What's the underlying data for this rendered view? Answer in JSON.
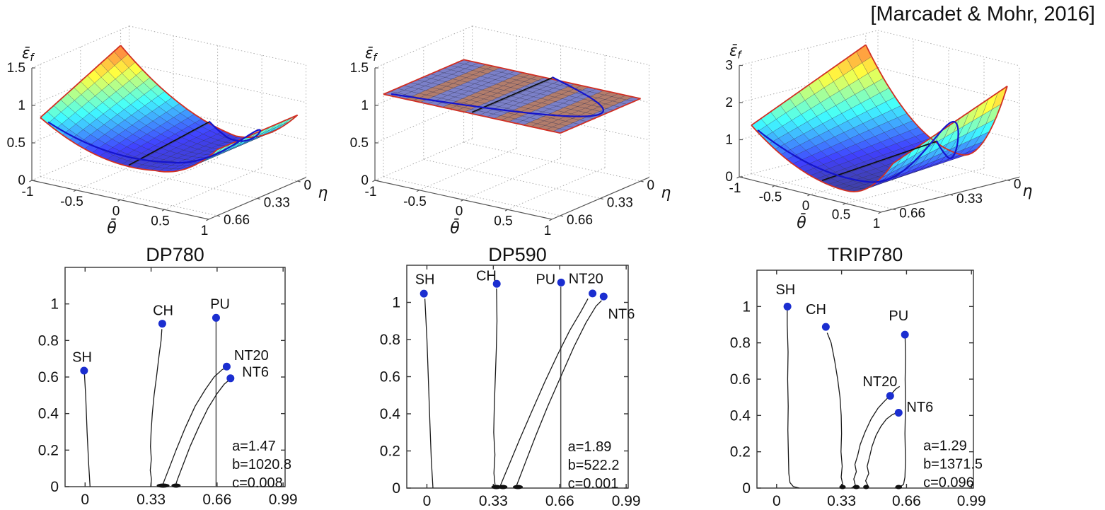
{
  "citation": "[Marcadet & Mohr, 2016]",
  "colors": {
    "marker": "#1b2ed0",
    "path": "#1a1a1a",
    "pu_line": "#4d4d4d",
    "surface_edge": "#d12f23",
    "plane_stress_curve": "#1414cc",
    "plane_strain_line": "#111111",
    "grid": "#ababab",
    "axis": "#555555",
    "text": "#111111"
  },
  "chart_data": [
    {
      "type": "surface",
      "material": "DP780",
      "xlabel": "θ̄",
      "ylabel": "η",
      "zlabel": {
        "base": "ε̄",
        "sub": "f"
      },
      "x_ticks": [
        "-1",
        "-0.5",
        "0",
        "0.5",
        "1"
      ],
      "x_tick_values": [
        -1,
        -0.5,
        0,
        0.5,
        1
      ],
      "y_ticks": [
        "0.66",
        "0.33",
        "0"
      ],
      "y_tick_values": [
        0.66,
        0.33,
        0
      ],
      "z_ticks": [
        "0",
        "0.5",
        "1",
        "1.5"
      ],
      "z_tick_values": [
        0,
        0.5,
        1,
        1.5
      ],
      "x_range": [
        -1,
        1
      ],
      "y_range": [
        0,
        0.66
      ],
      "z_range": [
        0,
        1.5
      ],
      "shape": {
        "kind": "valley",
        "z_min": 0.42,
        "t_min": 0.3,
        "k_left": 0.62,
        "k_right": 0.46,
        "eta_gain": 0,
        "back_tilt": 0.76,
        "color_lo": 0.32,
        "color_hi": 1.5
      },
      "overlays": {
        "plane_stress_curve": true,
        "plane_strain_line": true,
        "red_edges": true
      }
    },
    {
      "type": "surface",
      "material": "DP590",
      "xlabel": "θ̄",
      "ylabel": "η",
      "zlabel": {
        "base": "ε̄",
        "sub": "f"
      },
      "x_ticks": [
        "-1",
        "-0.5",
        "0",
        "0.5",
        "1"
      ],
      "x_tick_values": [
        -1,
        -0.5,
        0,
        0.5,
        1
      ],
      "y_ticks": [
        "0.66",
        "0.33",
        "0"
      ],
      "y_tick_values": [
        0.66,
        0.33,
        0
      ],
      "z_ticks": [
        "0",
        "0.5",
        "1",
        "1.5"
      ],
      "z_tick_values": [
        0,
        0.5,
        1,
        1.5
      ],
      "x_range": [
        -1,
        1
      ],
      "y_range": [
        0,
        0.66
      ],
      "z_range": [
        0,
        1.5
      ],
      "shape": {
        "kind": "flat",
        "z_level": 1.1,
        "stripe_colors": [
          "#7b80c8",
          "#b27d6c"
        ],
        "stripe_pattern": [
          0,
          0,
          0,
          1,
          1,
          0,
          0,
          0,
          1,
          1,
          1,
          0,
          0,
          0,
          0,
          1,
          1,
          0,
          0,
          1,
          1,
          1,
          1,
          0
        ]
      },
      "overlays": {
        "plane_stress_curve": true,
        "plane_strain_line": true,
        "red_edges": true
      }
    },
    {
      "type": "surface",
      "material": "TRIP780",
      "xlabel": "θ̄",
      "ylabel": "η",
      "zlabel": {
        "base": "ε̄",
        "sub": "f"
      },
      "x_ticks": [
        "-1",
        "-0.5",
        "0",
        "0.5",
        "1"
      ],
      "x_tick_values": [
        -1,
        -0.5,
        0,
        0.5,
        1
      ],
      "y_ticks": [
        "0.66",
        "0.33",
        "0"
      ],
      "y_tick_values": [
        0.66,
        0.33,
        0
      ],
      "z_ticks": [
        "0",
        "1",
        "2",
        "3"
      ],
      "z_tick_values": [
        0,
        1,
        2,
        3
      ],
      "x_range": [
        -1,
        1
      ],
      "y_range": [
        0,
        0.66
      ],
      "z_range": [
        0,
        3
      ],
      "shape": {
        "kind": "valley",
        "z_min": 0.28,
        "t_min": 0.35,
        "k_left": 1.72,
        "k_right": 1.6,
        "eta_gain": 1.05,
        "back_tilt": 0,
        "color_lo": 0.15,
        "color_hi": 3.3
      },
      "overlays": {
        "plane_stress_curve": true,
        "plane_strain_line": true,
        "red_edges": true
      }
    },
    {
      "type": "scatter",
      "title": "DP780",
      "xlabel": "",
      "ylabel": "",
      "x_ticks": [
        "0",
        "0.33",
        "0.66",
        "0.99"
      ],
      "x_tick_values": [
        0,
        0.33,
        0.66,
        0.99
      ],
      "y_ticks": [
        "0",
        "0.2",
        "0.4",
        "0.6",
        "0.8",
        "1"
      ],
      "y_tick_values": [
        0,
        0.2,
        0.4,
        0.6,
        0.8,
        1
      ],
      "x_range": [
        -0.1,
        1.0
      ],
      "y_range": [
        0,
        1.2
      ],
      "points": [
        {
          "label": "SH",
          "x": -0.005,
          "y": 0.635,
          "lx": -0.015,
          "ly": 0.71,
          "anchor": "middle"
        },
        {
          "label": "CH",
          "x": 0.386,
          "y": 0.892,
          "lx": 0.39,
          "ly": 0.965,
          "anchor": "middle"
        },
        {
          "label": "PU",
          "x": 0.655,
          "y": 0.924,
          "lx": 0.675,
          "ly": 1.0,
          "anchor": "middle"
        },
        {
          "label": "NT20",
          "x": 0.708,
          "y": 0.657,
          "lx": 0.745,
          "ly": 0.72,
          "anchor": "start"
        },
        {
          "label": "NT6",
          "x": 0.727,
          "y": 0.593,
          "lx": 0.785,
          "ly": 0.63,
          "anchor": "start"
        }
      ],
      "paths": [
        {
          "label": "SH",
          "pts": [
            [
              0.025,
              0
            ],
            [
              0.018,
              0.12
            ],
            [
              0.01,
              0.3
            ],
            [
              0.003,
              0.5
            ],
            [
              -0.003,
              0.615
            ]
          ]
        },
        {
          "label": "CH",
          "pts": [
            [
              0.328,
              0
            ],
            [
              0.332,
              0.04
            ],
            [
              0.326,
              0.09
            ],
            [
              0.331,
              0.15
            ],
            [
              0.327,
              0.22
            ],
            [
              0.33,
              0.3
            ],
            [
              0.336,
              0.4
            ],
            [
              0.345,
              0.5
            ],
            [
              0.357,
              0.6
            ],
            [
              0.37,
              0.72
            ],
            [
              0.38,
              0.8
            ],
            [
              0.384,
              0.862
            ]
          ]
        },
        {
          "label": "NT20",
          "pts": [
            [
              0.385,
              0
            ],
            [
              0.395,
              0.03
            ],
            [
              0.42,
              0.1
            ],
            [
              0.455,
              0.2
            ],
            [
              0.5,
              0.32
            ],
            [
              0.55,
              0.44
            ],
            [
              0.6,
              0.53
            ],
            [
              0.645,
              0.6
            ],
            [
              0.685,
              0.64
            ],
            [
              0.7,
              0.648
            ]
          ]
        },
        {
          "label": "NT6",
          "pts": [
            [
              0.45,
              0
            ],
            [
              0.462,
              0.04
            ],
            [
              0.49,
              0.12
            ],
            [
              0.525,
              0.22
            ],
            [
              0.57,
              0.33
            ],
            [
              0.615,
              0.43
            ],
            [
              0.66,
              0.51
            ],
            [
              0.695,
              0.56
            ],
            [
              0.718,
              0.582
            ]
          ]
        }
      ],
      "pu_line": {
        "x": 0.655,
        "y_top": 0.905,
        "style": "straight"
      },
      "feet": [
        {
          "x": 0.39,
          "w": 0.05
        },
        {
          "x": 0.455,
          "w": 0.032
        }
      ],
      "params": {
        "lines": [
          "a=1.47",
          "b=1020.8",
          "c=0.008"
        ],
        "x": 0.735,
        "y_top": 0.225
      }
    },
    {
      "type": "scatter",
      "title": "DP590",
      "xlabel": "",
      "ylabel": "",
      "x_ticks": [
        "0",
        "0.33",
        "0.66",
        "0.99"
      ],
      "x_tick_values": [
        0,
        0.33,
        0.66,
        0.99
      ],
      "y_ticks": [
        "0",
        "0.2",
        "0.4",
        "0.6",
        "0.8",
        "1"
      ],
      "y_tick_values": [
        0,
        0.2,
        0.4,
        0.6,
        0.8,
        1
      ],
      "x_range": [
        -0.1,
        1.0
      ],
      "y_range": [
        0,
        1.2
      ],
      "points": [
        {
          "label": "SH",
          "x": -0.015,
          "y": 1.047,
          "lx": -0.01,
          "ly": 1.125,
          "anchor": "middle"
        },
        {
          "label": "CH",
          "x": 0.347,
          "y": 1.1,
          "lx": 0.295,
          "ly": 1.145,
          "anchor": "middle"
        },
        {
          "label": "PU",
          "x": 0.667,
          "y": 1.107,
          "lx": 0.59,
          "ly": 1.125,
          "anchor": "middle"
        },
        {
          "label": "NT20",
          "x": 0.823,
          "y": 1.048,
          "lx": 0.79,
          "ly": 1.13,
          "anchor": "middle"
        },
        {
          "label": "NT6",
          "x": 0.878,
          "y": 1.032,
          "lx": 0.9,
          "ly": 0.94,
          "anchor": "start"
        }
      ],
      "paths": [
        {
          "label": "SH",
          "pts": [
            [
              0.03,
              0
            ],
            [
              0.022,
              0.15
            ],
            [
              0.015,
              0.35
            ],
            [
              0.007,
              0.6
            ],
            [
              0.0,
              0.8
            ],
            [
              -0.01,
              1.02
            ]
          ]
        },
        {
          "label": "CH",
          "pts": [
            [
              0.34,
              0
            ],
            [
              0.333,
              0.08
            ],
            [
              0.338,
              0.18
            ],
            [
              0.332,
              0.3
            ],
            [
              0.335,
              0.45
            ],
            [
              0.34,
              0.6
            ],
            [
              0.345,
              0.75
            ],
            [
              0.348,
              0.9
            ],
            [
              0.347,
              1.0
            ],
            [
              0.346,
              1.075
            ]
          ]
        },
        {
          "label": "NT20",
          "pts": [
            [
              0.36,
              0
            ],
            [
              0.375,
              0.04
            ],
            [
              0.41,
              0.13
            ],
            [
              0.46,
              0.26
            ],
            [
              0.52,
              0.41
            ],
            [
              0.585,
              0.57
            ],
            [
              0.65,
              0.72
            ],
            [
              0.71,
              0.85
            ],
            [
              0.765,
              0.95
            ],
            [
              0.8,
              1.02
            ]
          ]
        },
        {
          "label": "NT6",
          "pts": [
            [
              0.44,
              0
            ],
            [
              0.455,
              0.04
            ],
            [
              0.49,
              0.14
            ],
            [
              0.54,
              0.28
            ],
            [
              0.6,
              0.44
            ],
            [
              0.665,
              0.6
            ],
            [
              0.73,
              0.76
            ],
            [
              0.79,
              0.89
            ],
            [
              0.84,
              0.98
            ],
            [
              0.868,
              1.01
            ]
          ]
        }
      ],
      "pu_line": {
        "x": 0.665,
        "y_top": 1.085,
        "style": "straight"
      },
      "feet": [
        {
          "x": 0.345,
          "w": 0.035
        },
        {
          "x": 0.378,
          "w": 0.03
        },
        {
          "x": 0.452,
          "w": 0.035
        }
      ],
      "params": {
        "lines": [
          "a=1.89",
          "b=522.2",
          "c=0.001"
        ],
        "x": 0.7,
        "y_top": 0.225
      }
    },
    {
      "type": "scatter",
      "title": "TRIP780",
      "xlabel": "",
      "ylabel": "",
      "x_ticks": [
        "0",
        "0.33",
        "0.66",
        "0.99"
      ],
      "x_tick_values": [
        0,
        0.33,
        0.66,
        0.99
      ],
      "y_ticks": [
        "0",
        "0.2",
        "0.4",
        "0.6",
        "0.8",
        "1"
      ],
      "y_tick_values": [
        0,
        0.2,
        0.4,
        0.6,
        0.8,
        1
      ],
      "x_range": [
        -0.1,
        1.0
      ],
      "y_range": [
        0,
        1.2
      ],
      "points": [
        {
          "label": "SH",
          "x": 0.055,
          "y": 1.0,
          "lx": 0.045,
          "ly": 1.095,
          "anchor": "middle"
        },
        {
          "label": "CH",
          "x": 0.25,
          "y": 0.888,
          "lx": 0.2,
          "ly": 0.985,
          "anchor": "middle"
        },
        {
          "label": "PU",
          "x": 0.652,
          "y": 0.845,
          "lx": 0.62,
          "ly": 0.95,
          "anchor": "middle"
        },
        {
          "label": "NT20",
          "x": 0.577,
          "y": 0.508,
          "lx": 0.525,
          "ly": 0.588,
          "anchor": "middle"
        },
        {
          "label": "NT6",
          "x": 0.62,
          "y": 0.415,
          "lx": 0.66,
          "ly": 0.448,
          "anchor": "start"
        }
      ],
      "paths": [
        {
          "label": "SH",
          "pts": [
            [
              0.115,
              0
            ],
            [
              0.085,
              0.008
            ],
            [
              0.068,
              0.03
            ],
            [
              0.062,
              0.08
            ],
            [
              0.06,
              0.18
            ],
            [
              0.057,
              0.32
            ],
            [
              0.059,
              0.45
            ],
            [
              0.056,
              0.6
            ],
            [
              0.058,
              0.75
            ],
            [
              0.054,
              0.9
            ],
            [
              0.054,
              0.985
            ]
          ]
        },
        {
          "label": "CH",
          "pts": [
            [
              0.33,
              0
            ],
            [
              0.336,
              0.02
            ],
            [
              0.328,
              0.06
            ],
            [
              0.333,
              0.12
            ],
            [
              0.327,
              0.2
            ],
            [
              0.33,
              0.3
            ],
            [
              0.328,
              0.4
            ],
            [
              0.322,
              0.5
            ],
            [
              0.31,
              0.6
            ],
            [
              0.295,
              0.7
            ],
            [
              0.277,
              0.8
            ],
            [
              0.257,
              0.855
            ]
          ]
        },
        {
          "label": "NT20",
          "pts": [
            [
              0.38,
              0
            ],
            [
              0.4,
              0.015
            ],
            [
              0.392,
              0.05
            ],
            [
              0.405,
              0.09
            ],
            [
              0.398,
              0.13
            ],
            [
              0.412,
              0.18
            ],
            [
              0.425,
              0.24
            ],
            [
              0.45,
              0.31
            ],
            [
              0.48,
              0.38
            ],
            [
              0.515,
              0.44
            ],
            [
              0.545,
              0.475
            ],
            [
              0.577,
              0.51
            ],
            [
              0.605,
              0.545
            ],
            [
              0.625,
              0.56
            ]
          ]
        },
        {
          "label": "NT6",
          "pts": [
            [
              0.445,
              0
            ],
            [
              0.465,
              0.01
            ],
            [
              0.452,
              0.04
            ],
            [
              0.468,
              0.08
            ],
            [
              0.46,
              0.12
            ],
            [
              0.472,
              0.17
            ],
            [
              0.485,
              0.23
            ],
            [
              0.505,
              0.29
            ],
            [
              0.53,
              0.34
            ],
            [
              0.558,
              0.38
            ],
            [
              0.588,
              0.405
            ],
            [
              0.612,
              0.415
            ]
          ]
        },
        {
          "label": "PU",
          "pts": [
            [
              0.6,
              0
            ],
            [
              0.625,
              0.006
            ],
            [
              0.645,
              0.02
            ],
            [
              0.652,
              0.06
            ],
            [
              0.655,
              0.15
            ],
            [
              0.652,
              0.3
            ],
            [
              0.655,
              0.45
            ],
            [
              0.653,
              0.6
            ],
            [
              0.655,
              0.72
            ],
            [
              0.653,
              0.825
            ]
          ]
        }
      ],
      "pu_line": null,
      "feet": [
        {
          "x": 0.335,
          "w": 0.018
        },
        {
          "x": 0.405,
          "w": 0.02
        },
        {
          "x": 0.455,
          "w": 0.016
        },
        {
          "x": 0.62,
          "w": 0.02
        }
      ],
      "params": {
        "lines": [
          "a=1.29",
          "b=1371.5",
          "c=0.096"
        ],
        "x": 0.745,
        "y_top": 0.235
      }
    }
  ]
}
